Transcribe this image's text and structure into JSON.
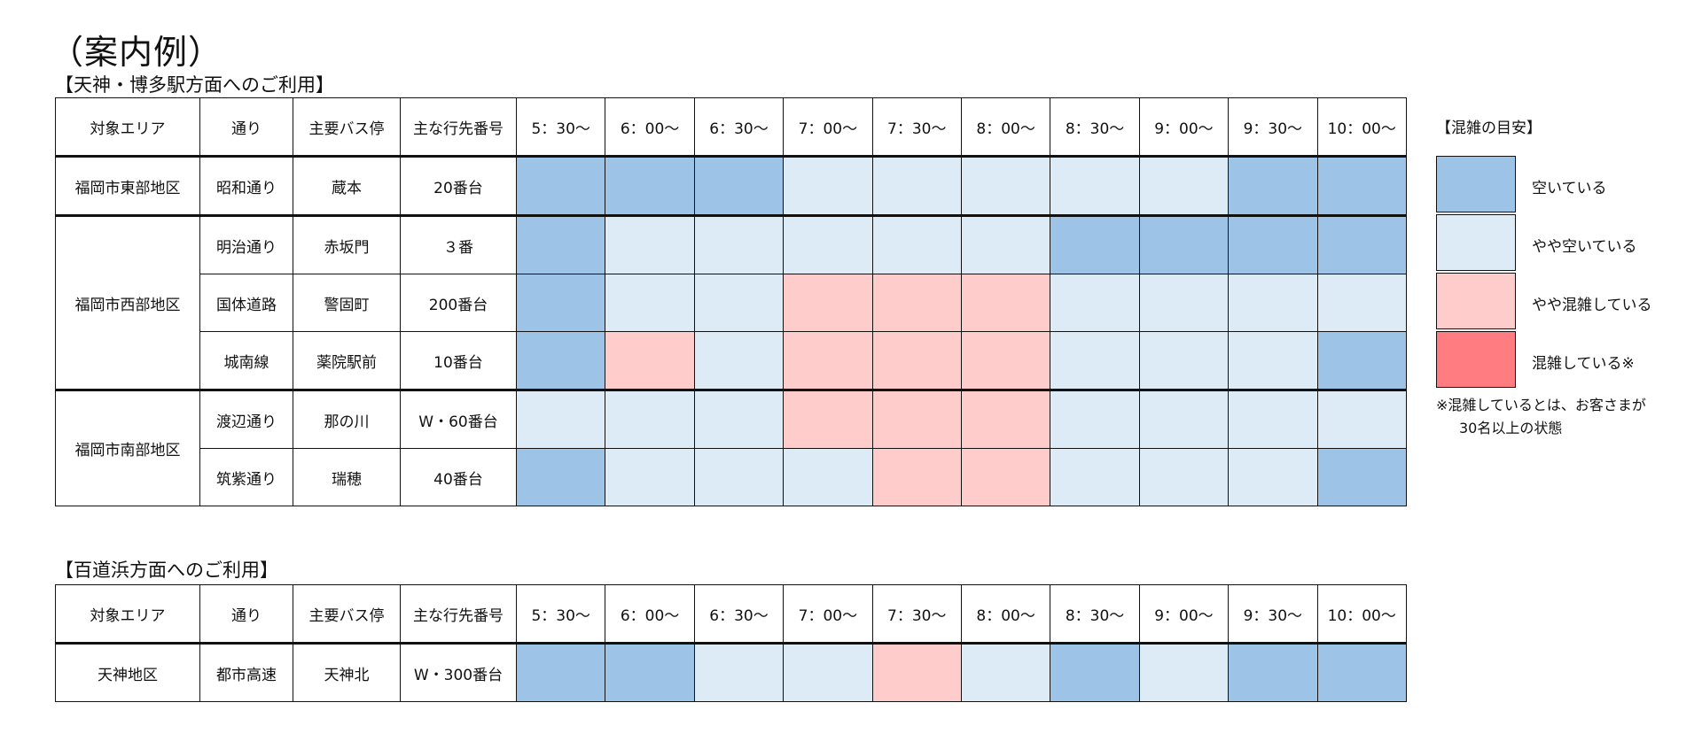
{
  "title": "（案内例）",
  "table1": {
    "label": "【天神・博多駅方面へのご利用】",
    "headers": [
      "対象エリア",
      "通り",
      "主要バス停",
      "主な行先番号"
    ],
    "times": [
      "5：30～",
      "6：00～",
      "6：30～",
      "7：00～",
      "7：30～",
      "8：00～",
      "8：30～",
      "9：00～",
      "9：30～",
      "10：00～"
    ],
    "groups": [
      {
        "area": "福岡市東部地区",
        "rows": [
          {
            "street": "昭和通り",
            "stop": "蔵本",
            "dest": "20番台",
            "levels": [
              1,
              1,
              1,
              2,
              2,
              2,
              2,
              2,
              1,
              1
            ]
          }
        ]
      },
      {
        "area": "福岡市西部地区",
        "rows": [
          {
            "street": "明治通り",
            "stop": "赤坂門",
            "dest": "３番",
            "levels": [
              1,
              2,
              2,
              2,
              2,
              2,
              1,
              1,
              1,
              1
            ]
          },
          {
            "street": "国体道路",
            "stop": "警固町",
            "dest": "200番台",
            "levels": [
              1,
              2,
              2,
              3,
              3,
              3,
              2,
              2,
              2,
              2
            ]
          },
          {
            "street": "城南線",
            "stop": "薬院駅前",
            "dest": "10番台",
            "levels": [
              1,
              3,
              2,
              3,
              3,
              3,
              2,
              2,
              2,
              1
            ]
          }
        ]
      },
      {
        "area": "福岡市南部地区",
        "rows": [
          {
            "street": "渡辺通り",
            "stop": "那の川",
            "dest": "W・60番台",
            "levels": [
              2,
              2,
              2,
              3,
              3,
              3,
              2,
              2,
              2,
              2
            ]
          },
          {
            "street": "筑紫通り",
            "stop": "瑞穂",
            "dest": "40番台",
            "levels": [
              1,
              2,
              2,
              2,
              3,
              3,
              2,
              2,
              2,
              1
            ]
          }
        ]
      }
    ]
  },
  "table2": {
    "label": "【百道浜方面へのご利用】",
    "headers": [
      "対象エリア",
      "通り",
      "主要バス停",
      "主な行先番号"
    ],
    "times": [
      "5：30～",
      "6：00～",
      "6：30～",
      "7：00～",
      "7：30～",
      "8：00～",
      "8：30～",
      "9：00～",
      "9：30～",
      "10：00～"
    ],
    "groups": [
      {
        "area": "天神地区",
        "rows": [
          {
            "street": "都市高速",
            "stop": "天神北",
            "dest": "W・300番台",
            "levels": [
              1,
              1,
              2,
              2,
              3,
              2,
              1,
              2,
              1,
              1
            ]
          }
        ]
      }
    ]
  },
  "legend": {
    "title": "【混雑の目安】",
    "items": [
      {
        "label": "空いている",
        "color": "#9dc3e6"
      },
      {
        "label": "やや空いている",
        "color": "#ddebf7"
      },
      {
        "label": "やや混雑している",
        "color": "#ffcccc"
      },
      {
        "label": "混雑している※",
        "color": "#ff7c80"
      }
    ],
    "note_line1": "※混雑しているとは、お客さまが",
    "note_line2": "30名以上の状態"
  }
}
